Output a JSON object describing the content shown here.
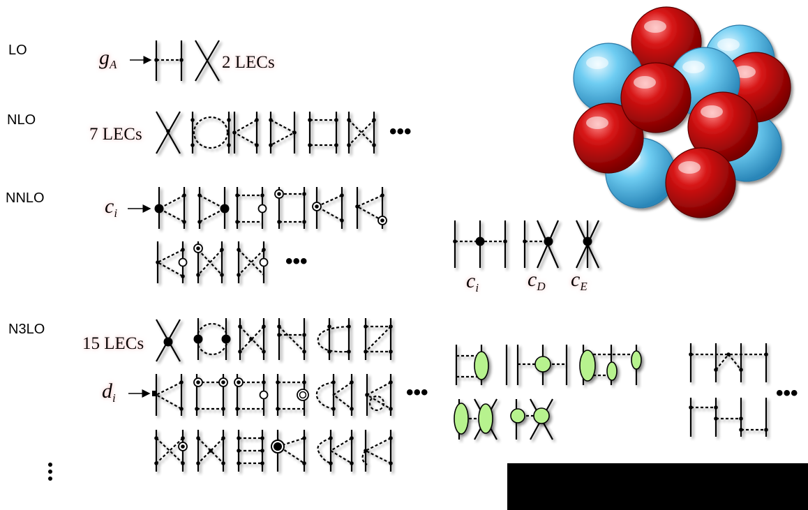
{
  "orders": {
    "lo": "LO",
    "nlo": "NLO",
    "nnlo": "NNLO",
    "n3lo": "N3LO"
  },
  "labels": {
    "ga_main": "g",
    "ga_sub": "A",
    "lo_lecs": "2 LECs",
    "nlo_lecs": "7 LECs",
    "nnlo_ci_main": "c",
    "nnlo_ci_sub": "i",
    "n3lo_lecs": "15 LECs",
    "n3lo_di_main": "d",
    "n3lo_di_sub": "i",
    "three_body_ci_main": "c",
    "three_body_ci_sub": "i",
    "three_body_cd_main": "c",
    "three_body_cd_sub": "D",
    "three_body_ce_main": "c",
    "three_body_ce_sub": "E"
  },
  "ellipsis": "•••",
  "colors": {
    "proton": "#cc0a0a",
    "neutron": "#5ec4ee",
    "blob": "#b7f28e",
    "glow": "#f3a7a7"
  },
  "icons": {
    "nucleus": "nucleus-icon",
    "arrow": "arrow-icon"
  }
}
